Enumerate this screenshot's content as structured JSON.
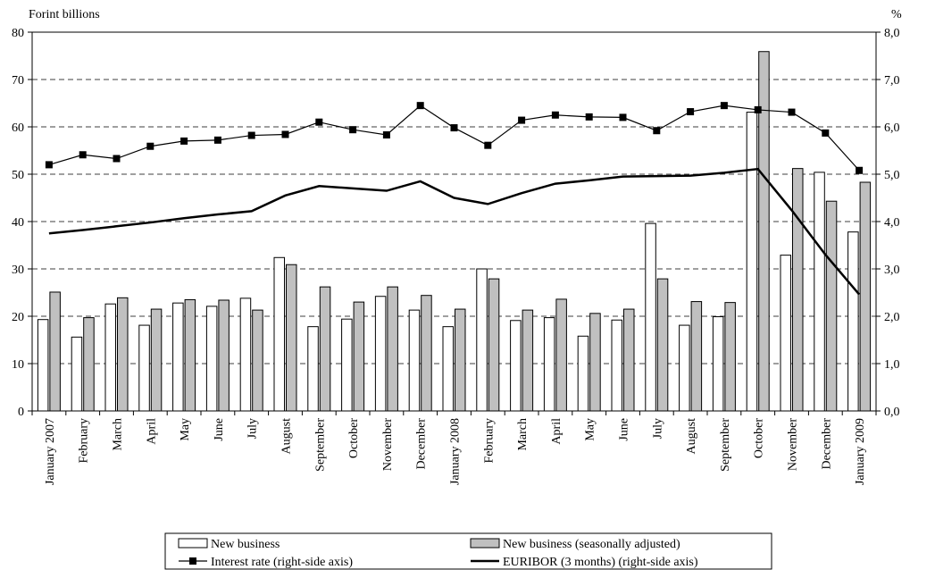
{
  "chart_data": {
    "type": "bar",
    "left_axis_label": "Forint billions",
    "right_axis_label": "%",
    "y_left_ticks": [
      "0",
      "10",
      "20",
      "30",
      "40",
      "50",
      "60",
      "70",
      "80"
    ],
    "y_right_ticks": [
      "0,0",
      "1,0",
      "2,0",
      "3,0",
      "4,0",
      "5,0",
      "6,0",
      "7,0",
      "8,0"
    ],
    "ylim_left": [
      0,
      80
    ],
    "ylim_right": [
      0,
      8
    ],
    "grid": "horizontal dashed",
    "legend_position": "bottom",
    "categories": [
      "January 2007",
      "February",
      "March",
      "April",
      "May",
      "June",
      "July",
      "August",
      "September",
      "October",
      "November",
      "December",
      "January 2008",
      "February",
      "March",
      "April",
      "May",
      "June",
      "July",
      "August",
      "September",
      "October",
      "November",
      "December",
      "January 2009"
    ],
    "series": [
      {
        "name": "New business",
        "kind": "bar",
        "axis": "left",
        "color": "#ffffff",
        "values": [
          19.3,
          15.6,
          22.6,
          18.1,
          22.8,
          22.1,
          23.8,
          32.4,
          17.8,
          19.4,
          24.2,
          21.3,
          17.8,
          30.0,
          19.1,
          19.7,
          15.8,
          19.2,
          39.6,
          18.1,
          19.9,
          63.1,
          32.9,
          50.4,
          37.8
        ]
      },
      {
        "name": "New business (seasonally adjusted)",
        "kind": "bar",
        "axis": "left",
        "color": "#c0c0c0",
        "values": [
          25.1,
          19.7,
          23.9,
          21.5,
          23.5,
          23.4,
          21.3,
          30.9,
          26.2,
          23.0,
          26.2,
          24.4,
          21.5,
          27.9,
          21.3,
          23.6,
          20.6,
          21.5,
          27.9,
          23.1,
          22.9,
          75.9,
          51.2,
          44.3,
          48.3
        ]
      },
      {
        "name": "Interest rate (right-side axis)",
        "kind": "line-marker",
        "axis": "right",
        "color": "#000000",
        "values": [
          5.2,
          5.41,
          5.33,
          5.59,
          5.7,
          5.72,
          5.82,
          5.84,
          6.1,
          5.94,
          5.83,
          6.45,
          5.98,
          5.61,
          6.14,
          6.25,
          6.21,
          6.2,
          5.92,
          6.32,
          6.45,
          6.36,
          6.31,
          5.87,
          5.08
        ]
      },
      {
        "name": "EURIBOR (3 months) (right-side axis)",
        "kind": "line",
        "axis": "right",
        "color": "#000000",
        "values": [
          3.75,
          3.82,
          3.9,
          3.98,
          4.07,
          4.15,
          4.22,
          4.55,
          4.75,
          4.7,
          4.65,
          4.85,
          4.5,
          4.37,
          4.6,
          4.8,
          4.87,
          4.95,
          4.96,
          4.97,
          5.03,
          5.11,
          4.24,
          3.3,
          2.46
        ]
      }
    ]
  }
}
